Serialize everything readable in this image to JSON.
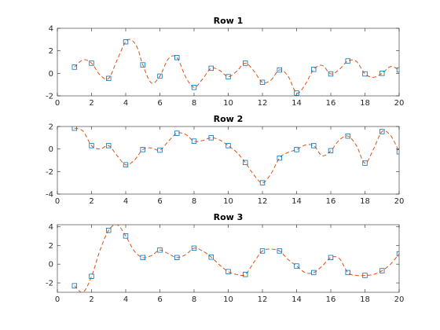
{
  "chart_data": [
    {
      "type": "line",
      "title": "Row 1",
      "xlabel": "",
      "ylabel": "",
      "xlim": [
        0,
        20
      ],
      "ylim": [
        -2,
        4
      ],
      "xticks": [
        0,
        2,
        4,
        6,
        8,
        10,
        12,
        14,
        16,
        18,
        20
      ],
      "yticks": [
        -2,
        0,
        2,
        4
      ],
      "grid": false,
      "series": [
        {
          "marker": "square",
          "color": "#0072BD",
          "x": [
            1,
            2,
            3,
            4,
            5,
            6,
            7,
            8,
            9,
            10,
            11,
            12,
            13,
            14,
            15,
            16,
            17,
            18,
            19,
            20
          ],
          "values": [
            0.55,
            0.9,
            -0.45,
            2.8,
            0.75,
            -0.25,
            1.4,
            -1.25,
            0.45,
            -0.3,
            0.9,
            -0.8,
            0.3,
            -1.75,
            0.35,
            -0.05,
            1.1,
            -0.05,
            0.0,
            0.3
          ]
        },
        {
          "style": "dashed",
          "color": "#D95319",
          "x": [
            1,
            1.5,
            2,
            2.5,
            3,
            3.5,
            4,
            4.35,
            4.7,
            5,
            5.5,
            6,
            6.5,
            7,
            7.5,
            8,
            8.5,
            9,
            9.5,
            10,
            10.5,
            11,
            11.5,
            12,
            12.5,
            13,
            13.5,
            14,
            14.5,
            15,
            15.5,
            16,
            16.5,
            17,
            17.5,
            18,
            18.5,
            19,
            19.5,
            20
          ],
          "values": [
            0.55,
            1.2,
            0.9,
            -0.15,
            -0.45,
            1.2,
            2.8,
            2.95,
            2.2,
            0.75,
            -0.85,
            -0.25,
            1.3,
            1.4,
            -0.3,
            -1.25,
            -0.5,
            0.45,
            0.25,
            -0.3,
            0.2,
            0.9,
            0.2,
            -0.8,
            -0.6,
            0.3,
            -0.25,
            -1.75,
            -1.0,
            0.35,
            0.7,
            -0.05,
            0.35,
            1.1,
            1.05,
            -0.05,
            -0.35,
            0.0,
            0.6,
            0.3
          ]
        }
      ]
    },
    {
      "type": "line",
      "title": "Row 2",
      "xlabel": "",
      "ylabel": "",
      "xlim": [
        0,
        20
      ],
      "ylim": [
        -4,
        2
      ],
      "xticks": [
        0,
        2,
        4,
        6,
        8,
        10,
        12,
        14,
        16,
        18,
        20
      ],
      "yticks": [
        -4,
        -2,
        0,
        2
      ],
      "grid": false,
      "series": [
        {
          "marker": "square",
          "color": "#0072BD",
          "x": [
            1,
            2,
            3,
            4,
            5,
            6,
            7,
            8,
            9,
            10,
            11,
            12,
            13,
            14,
            15,
            16,
            17,
            18,
            19,
            20
          ],
          "values": [
            1.85,
            0.3,
            0.3,
            -1.4,
            -0.05,
            -0.1,
            1.4,
            0.7,
            1.0,
            0.3,
            -1.2,
            -3.0,
            -0.8,
            -0.05,
            0.3,
            -0.15,
            1.15,
            -1.25,
            1.55,
            -0.25
          ]
        },
        {
          "style": "dashed",
          "color": "#D95319",
          "x": [
            1,
            1.5,
            2,
            2.5,
            3,
            3.5,
            4,
            4.5,
            5,
            5.5,
            6,
            6.5,
            7,
            7.5,
            8,
            8.5,
            9,
            9.5,
            10,
            10.5,
            11,
            11.5,
            12,
            12.5,
            13,
            13.5,
            14,
            14.5,
            15,
            15.5,
            16,
            16.5,
            17,
            17.5,
            18,
            18.5,
            19,
            19.5,
            20
          ],
          "values": [
            1.85,
            1.6,
            0.3,
            0.0,
            0.3,
            -0.6,
            -1.4,
            -1.0,
            -0.05,
            0.1,
            -0.1,
            0.7,
            1.4,
            1.3,
            0.7,
            0.75,
            1.0,
            0.8,
            0.3,
            -0.3,
            -1.2,
            -2.3,
            -3.0,
            -2.2,
            -0.8,
            -0.3,
            -0.05,
            0.35,
            0.3,
            -0.6,
            -0.15,
            0.8,
            1.15,
            0.3,
            -1.25,
            0.0,
            1.55,
            1.2,
            -0.25
          ]
        }
      ]
    },
    {
      "type": "line",
      "title": "Row 3",
      "xlabel": "",
      "ylabel": "",
      "xlim": [
        0,
        20
      ],
      "ylim": [
        -3,
        4.2
      ],
      "xticks": [
        0,
        2,
        4,
        6,
        8,
        10,
        12,
        14,
        16,
        18,
        20
      ],
      "yticks": [
        -2,
        0,
        2,
        4
      ],
      "grid": false,
      "series": [
        {
          "marker": "square",
          "color": "#0072BD",
          "x": [
            1,
            2,
            3,
            4,
            5,
            6,
            7,
            8,
            9,
            10,
            11,
            12,
            13,
            14,
            15,
            16,
            17,
            18,
            19,
            20
          ],
          "values": [
            -2.3,
            -1.3,
            3.6,
            3.0,
            0.7,
            1.5,
            0.7,
            1.7,
            0.75,
            -0.8,
            -1.1,
            1.4,
            1.4,
            -0.2,
            -0.9,
            0.7,
            -0.9,
            -1.2,
            -0.7,
            1.1
          ]
        },
        {
          "style": "dashed",
          "color": "#D95319",
          "x": [
            1,
            1.5,
            2,
            2.5,
            3,
            3.5,
            4,
            4.5,
            5,
            5.5,
            6,
            6.5,
            7,
            7.5,
            8,
            8.5,
            9,
            9.5,
            10,
            10.5,
            11,
            11.5,
            12,
            12.5,
            13,
            13.5,
            14,
            14.5,
            15,
            15.5,
            16,
            16.5,
            17,
            17.5,
            18,
            18.5,
            19,
            19.5,
            20
          ],
          "values": [
            -2.3,
            -3.0,
            -1.3,
            1.5,
            3.6,
            4.2,
            3.0,
            1.4,
            0.7,
            0.9,
            1.5,
            1.1,
            0.7,
            1.0,
            1.7,
            1.4,
            0.75,
            -0.1,
            -0.8,
            -1.1,
            -1.1,
            0.2,
            1.4,
            1.6,
            1.4,
            0.5,
            -0.2,
            -0.9,
            -0.9,
            -0.2,
            0.7,
            0.6,
            -0.9,
            -1.2,
            -1.2,
            -1.1,
            -0.7,
            0.0,
            1.1
          ]
        }
      ]
    }
  ]
}
